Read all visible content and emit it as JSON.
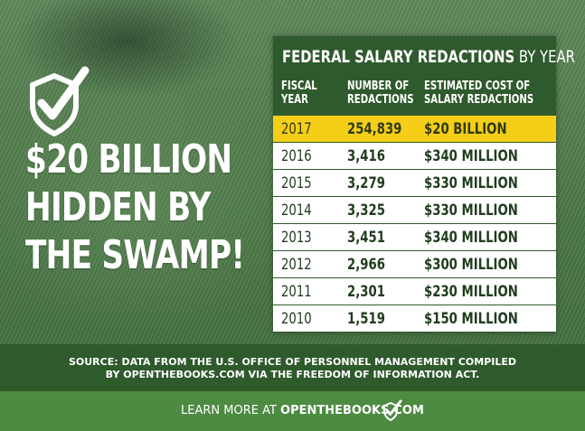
{
  "headline": {
    "lines": [
      "$20 BILLION",
      "HIDDEN BY",
      "THE SWAMP!"
    ],
    "icon": "check-shield-icon"
  },
  "table": {
    "title_bold": "FEDERAL SALARY REDACTIONS",
    "title_rest": " BY YEAR",
    "headers": {
      "year": [
        "FISCAL",
        "YEAR"
      ],
      "count": [
        "NUMBER OF",
        "REDACTIONS"
      ],
      "cost": [
        "ESTIMATED COST OF",
        "SALARY REDACTIONS"
      ]
    },
    "rows": [
      {
        "year": "2017",
        "count": "254,839",
        "cost": "$20 BILLION",
        "highlight": true
      },
      {
        "year": "2016",
        "count": "3,416",
        "cost": "$340 MILLION"
      },
      {
        "year": "2015",
        "count": "3,279",
        "cost": "$330 MILLION"
      },
      {
        "year": "2014",
        "count": "3,325",
        "cost": "$330 MILLION"
      },
      {
        "year": "2013",
        "count": "3,451",
        "cost": "$340 MILLION"
      },
      {
        "year": "2012",
        "count": "2,966",
        "cost": "$300 MILLION"
      },
      {
        "year": "2011",
        "count": "2,301",
        "cost": "$230 MILLION"
      },
      {
        "year": "2010",
        "count": "1,519",
        "cost": "$150 MILLION"
      }
    ]
  },
  "source": {
    "line1": "SOURCE: DATA FROM THE U.S. OFFICE OF PERSONNEL MANAGEMENT COMPILED",
    "line2": "BY OPENTHEBOOKS.COM VIA THE FREEDOM OF INFORMATION ACT."
  },
  "footer": {
    "prefix": "LEARN MORE AT ",
    "site": "OPENTHEBOOKS.COM",
    "icon": "check-shield-icon"
  },
  "colors": {
    "highlight": "#f5cf17",
    "dark_green": "#2f5a2d",
    "footer_green": "#4d8a42"
  }
}
